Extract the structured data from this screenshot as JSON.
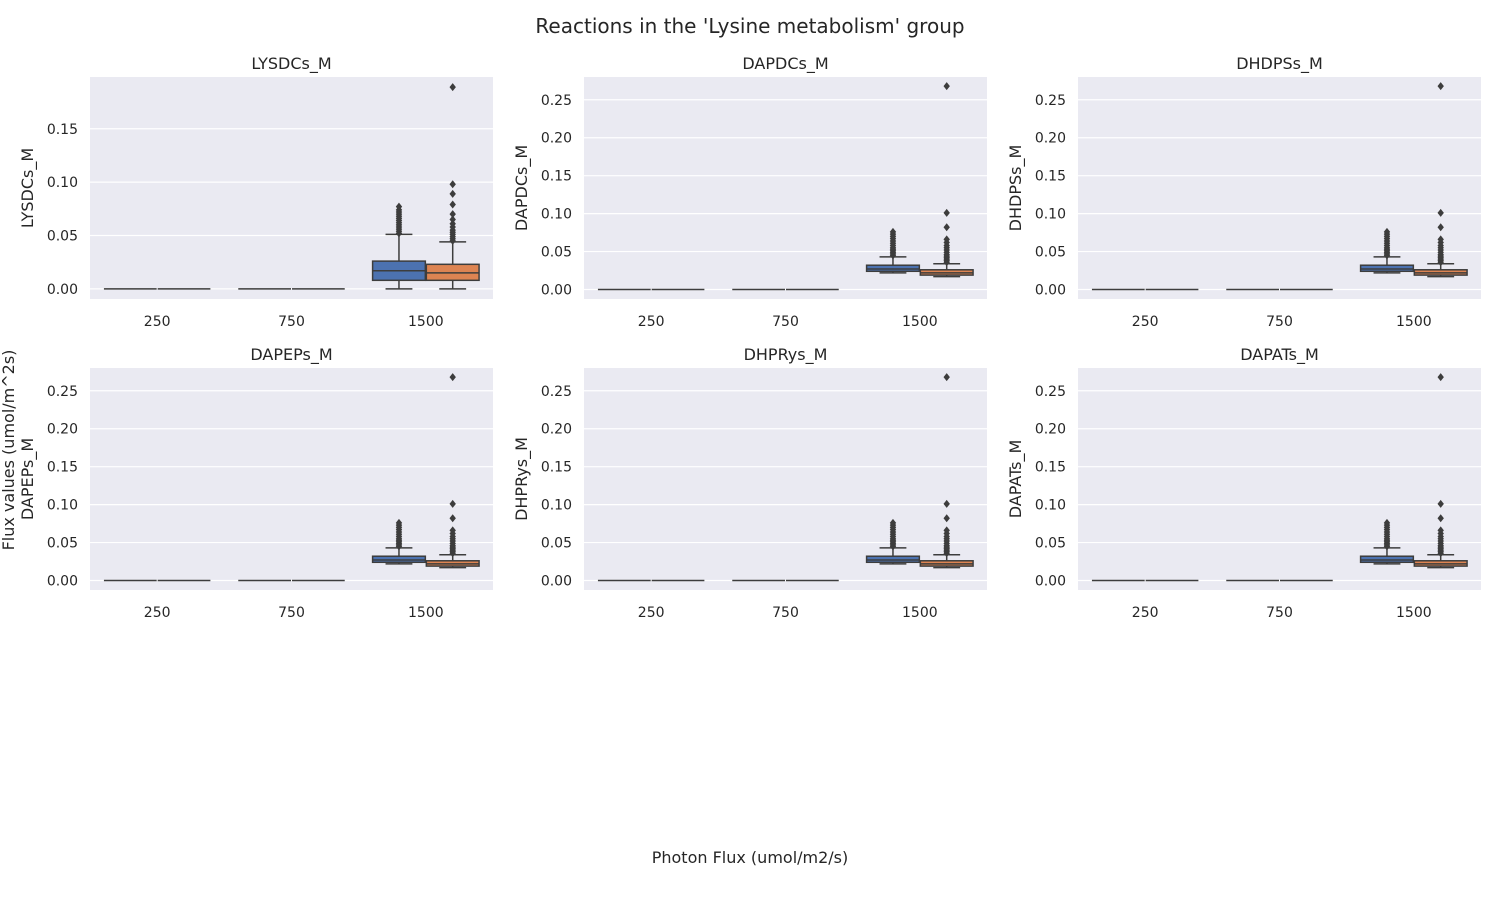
{
  "figure": {
    "title": "Reactions in the 'Lysine metabolism' group",
    "xlabel": "Photon Flux (umol/m2/s)",
    "ylabel": "Flux values (umol/m^2s)"
  },
  "colors": {
    "panel_bg": "#eaeaf2",
    "grid": "#ffffff",
    "hue_1": "#4c72b0",
    "hue_2": "#dd8452",
    "line": "#3d3d3d"
  },
  "chart_data": [
    {
      "type": "box",
      "title": "LYSDCs_M",
      "ylabel": "LYSDCs_M",
      "categories": [
        "250",
        "750",
        "1500"
      ],
      "yticks": [
        "0.00",
        "0.05",
        "0.10",
        "0.15"
      ],
      "ylim": [
        -0.0095,
        0.1985
      ],
      "boxes": [
        {
          "category": "250",
          "hue": 0,
          "q1": 0,
          "median": 0,
          "q3": 0,
          "whisker_low": 0,
          "whisker_high": 0,
          "fliers": []
        },
        {
          "category": "250",
          "hue": 1,
          "q1": 0,
          "median": 0,
          "q3": 0,
          "whisker_low": 0,
          "whisker_high": 0,
          "fliers": []
        },
        {
          "category": "750",
          "hue": 0,
          "q1": 0,
          "median": 0,
          "q3": 0,
          "whisker_low": 0,
          "whisker_high": 0,
          "fliers": []
        },
        {
          "category": "750",
          "hue": 1,
          "q1": 0,
          "median": 0,
          "q3": 0,
          "whisker_low": 0,
          "whisker_high": 0,
          "fliers": []
        },
        {
          "category": "1500",
          "hue": 0,
          "q1": 0.008,
          "median": 0.017,
          "q3": 0.026,
          "whisker_low": 0.0,
          "whisker_high": 0.051,
          "fliers": [
            0.052,
            0.054,
            0.056,
            0.058,
            0.06,
            0.062,
            0.064,
            0.066,
            0.068,
            0.07,
            0.072,
            0.074,
            0.077
          ]
        },
        {
          "category": "1500",
          "hue": 1,
          "q1": 0.008,
          "median": 0.015,
          "q3": 0.023,
          "whisker_low": 0.0,
          "whisker_high": 0.044,
          "fliers": [
            0.045,
            0.047,
            0.049,
            0.051,
            0.053,
            0.055,
            0.058,
            0.061,
            0.065,
            0.07,
            0.079,
            0.089,
            0.098,
            0.189
          ]
        }
      ]
    },
    {
      "type": "box",
      "title": "DAPDCs_M",
      "ylabel": "DAPDCs_M",
      "categories": [
        "250",
        "750",
        "1500"
      ],
      "yticks": [
        "0.00",
        "0.05",
        "0.10",
        "0.15",
        "0.20",
        "0.25"
      ],
      "ylim": [
        -0.0125,
        0.28
      ],
      "boxes": [
        {
          "category": "250",
          "hue": 0,
          "q1": 0,
          "median": 0,
          "q3": 0,
          "whisker_low": 0,
          "whisker_high": 0,
          "fliers": []
        },
        {
          "category": "250",
          "hue": 1,
          "q1": 0,
          "median": 0,
          "q3": 0,
          "whisker_low": 0,
          "whisker_high": 0,
          "fliers": []
        },
        {
          "category": "750",
          "hue": 0,
          "q1": 0,
          "median": 0,
          "q3": 0,
          "whisker_low": 0,
          "whisker_high": 0,
          "fliers": []
        },
        {
          "category": "750",
          "hue": 1,
          "q1": 0,
          "median": 0,
          "q3": 0,
          "whisker_low": 0,
          "whisker_high": 0,
          "fliers": []
        },
        {
          "category": "1500",
          "hue": 0,
          "q1": 0.024,
          "median": 0.027,
          "q3": 0.032,
          "whisker_low": 0.022,
          "whisker_high": 0.043,
          "fliers": [
            0.045,
            0.047,
            0.049,
            0.051,
            0.053,
            0.055,
            0.058,
            0.061,
            0.064,
            0.067,
            0.07,
            0.073,
            0.076
          ]
        },
        {
          "category": "1500",
          "hue": 1,
          "q1": 0.019,
          "median": 0.022,
          "q3": 0.026,
          "whisker_low": 0.017,
          "whisker_high": 0.034,
          "fliers": [
            0.036,
            0.038,
            0.04,
            0.042,
            0.044,
            0.046,
            0.049,
            0.052,
            0.055,
            0.058,
            0.062,
            0.066,
            0.082,
            0.101,
            0.268
          ]
        }
      ]
    },
    {
      "type": "box",
      "title": "DHDPSs_M",
      "ylabel": "DHDPSs_M",
      "categories": [
        "250",
        "750",
        "1500"
      ],
      "yticks": [
        "0.00",
        "0.05",
        "0.10",
        "0.15",
        "0.20",
        "0.25"
      ],
      "ylim": [
        -0.0125,
        0.28
      ],
      "boxes": [
        {
          "category": "250",
          "hue": 0,
          "q1": 0,
          "median": 0,
          "q3": 0,
          "whisker_low": 0,
          "whisker_high": 0,
          "fliers": []
        },
        {
          "category": "250",
          "hue": 1,
          "q1": 0,
          "median": 0,
          "q3": 0,
          "whisker_low": 0,
          "whisker_high": 0,
          "fliers": []
        },
        {
          "category": "750",
          "hue": 0,
          "q1": 0,
          "median": 0,
          "q3": 0,
          "whisker_low": 0,
          "whisker_high": 0,
          "fliers": []
        },
        {
          "category": "750",
          "hue": 1,
          "q1": 0,
          "median": 0,
          "q3": 0,
          "whisker_low": 0,
          "whisker_high": 0,
          "fliers": []
        },
        {
          "category": "1500",
          "hue": 0,
          "q1": 0.024,
          "median": 0.027,
          "q3": 0.032,
          "whisker_low": 0.022,
          "whisker_high": 0.043,
          "fliers": [
            0.045,
            0.047,
            0.049,
            0.051,
            0.053,
            0.055,
            0.058,
            0.061,
            0.064,
            0.067,
            0.07,
            0.073,
            0.076
          ]
        },
        {
          "category": "1500",
          "hue": 1,
          "q1": 0.019,
          "median": 0.022,
          "q3": 0.026,
          "whisker_low": 0.017,
          "whisker_high": 0.034,
          "fliers": [
            0.036,
            0.038,
            0.04,
            0.042,
            0.044,
            0.046,
            0.049,
            0.052,
            0.055,
            0.058,
            0.062,
            0.066,
            0.082,
            0.101,
            0.268
          ]
        }
      ]
    },
    {
      "type": "box",
      "title": "DAPEPs_M",
      "ylabel": "DAPEPs_M",
      "categories": [
        "250",
        "750",
        "1500"
      ],
      "yticks": [
        "0.00",
        "0.05",
        "0.10",
        "0.15",
        "0.20",
        "0.25"
      ],
      "ylim": [
        -0.0125,
        0.28
      ],
      "boxes": [
        {
          "category": "250",
          "hue": 0,
          "q1": 0,
          "median": 0,
          "q3": 0,
          "whisker_low": 0,
          "whisker_high": 0,
          "fliers": []
        },
        {
          "category": "250",
          "hue": 1,
          "q1": 0,
          "median": 0,
          "q3": 0,
          "whisker_low": 0,
          "whisker_high": 0,
          "fliers": []
        },
        {
          "category": "750",
          "hue": 0,
          "q1": 0,
          "median": 0,
          "q3": 0,
          "whisker_low": 0,
          "whisker_high": 0,
          "fliers": []
        },
        {
          "category": "750",
          "hue": 1,
          "q1": 0,
          "median": 0,
          "q3": 0,
          "whisker_low": 0,
          "whisker_high": 0,
          "fliers": []
        },
        {
          "category": "1500",
          "hue": 0,
          "q1": 0.024,
          "median": 0.027,
          "q3": 0.032,
          "whisker_low": 0.022,
          "whisker_high": 0.043,
          "fliers": [
            0.045,
            0.047,
            0.049,
            0.051,
            0.053,
            0.055,
            0.058,
            0.061,
            0.064,
            0.067,
            0.07,
            0.073,
            0.076
          ]
        },
        {
          "category": "1500",
          "hue": 1,
          "q1": 0.019,
          "median": 0.022,
          "q3": 0.026,
          "whisker_low": 0.017,
          "whisker_high": 0.034,
          "fliers": [
            0.036,
            0.038,
            0.04,
            0.042,
            0.044,
            0.046,
            0.049,
            0.052,
            0.055,
            0.058,
            0.062,
            0.066,
            0.082,
            0.101,
            0.268
          ]
        }
      ]
    },
    {
      "type": "box",
      "title": "DHPRys_M",
      "ylabel": "DHPRys_M",
      "categories": [
        "250",
        "750",
        "1500"
      ],
      "yticks": [
        "0.00",
        "0.05",
        "0.10",
        "0.15",
        "0.20",
        "0.25"
      ],
      "ylim": [
        -0.0125,
        0.28
      ],
      "boxes": [
        {
          "category": "250",
          "hue": 0,
          "q1": 0,
          "median": 0,
          "q3": 0,
          "whisker_low": 0,
          "whisker_high": 0,
          "fliers": []
        },
        {
          "category": "250",
          "hue": 1,
          "q1": 0,
          "median": 0,
          "q3": 0,
          "whisker_low": 0,
          "whisker_high": 0,
          "fliers": []
        },
        {
          "category": "750",
          "hue": 0,
          "q1": 0,
          "median": 0,
          "q3": 0,
          "whisker_low": 0,
          "whisker_high": 0,
          "fliers": []
        },
        {
          "category": "750",
          "hue": 1,
          "q1": 0,
          "median": 0,
          "q3": 0,
          "whisker_low": 0,
          "whisker_high": 0,
          "fliers": []
        },
        {
          "category": "1500",
          "hue": 0,
          "q1": 0.024,
          "median": 0.027,
          "q3": 0.032,
          "whisker_low": 0.022,
          "whisker_high": 0.043,
          "fliers": [
            0.045,
            0.047,
            0.049,
            0.051,
            0.053,
            0.055,
            0.058,
            0.061,
            0.064,
            0.067,
            0.07,
            0.073,
            0.076
          ]
        },
        {
          "category": "1500",
          "hue": 1,
          "q1": 0.019,
          "median": 0.022,
          "q3": 0.026,
          "whisker_low": 0.017,
          "whisker_high": 0.034,
          "fliers": [
            0.036,
            0.038,
            0.04,
            0.042,
            0.044,
            0.046,
            0.049,
            0.052,
            0.055,
            0.058,
            0.062,
            0.066,
            0.082,
            0.101,
            0.268
          ]
        }
      ]
    },
    {
      "type": "box",
      "title": "DAPATs_M",
      "ylabel": "DAPATs_M",
      "categories": [
        "250",
        "750",
        "1500"
      ],
      "yticks": [
        "0.00",
        "0.05",
        "0.10",
        "0.15",
        "0.20",
        "0.25"
      ],
      "ylim": [
        -0.0125,
        0.28
      ],
      "boxes": [
        {
          "category": "250",
          "hue": 0,
          "q1": 0,
          "median": 0,
          "q3": 0,
          "whisker_low": 0,
          "whisker_high": 0,
          "fliers": []
        },
        {
          "category": "250",
          "hue": 1,
          "q1": 0,
          "median": 0,
          "q3": 0,
          "whisker_low": 0,
          "whisker_high": 0,
          "fliers": []
        },
        {
          "category": "750",
          "hue": 0,
          "q1": 0,
          "median": 0,
          "q3": 0,
          "whisker_low": 0,
          "whisker_high": 0,
          "fliers": []
        },
        {
          "category": "750",
          "hue": 1,
          "q1": 0,
          "median": 0,
          "q3": 0,
          "whisker_low": 0,
          "whisker_high": 0,
          "fliers": []
        },
        {
          "category": "1500",
          "hue": 0,
          "q1": 0.024,
          "median": 0.027,
          "q3": 0.032,
          "whisker_low": 0.022,
          "whisker_high": 0.043,
          "fliers": [
            0.045,
            0.047,
            0.049,
            0.051,
            0.053,
            0.055,
            0.058,
            0.061,
            0.064,
            0.067,
            0.07,
            0.073,
            0.076
          ]
        },
        {
          "category": "1500",
          "hue": 1,
          "q1": 0.019,
          "median": 0.022,
          "q3": 0.026,
          "whisker_low": 0.017,
          "whisker_high": 0.034,
          "fliers": [
            0.036,
            0.038,
            0.04,
            0.042,
            0.044,
            0.046,
            0.049,
            0.052,
            0.055,
            0.058,
            0.062,
            0.066,
            0.082,
            0.101,
            0.268
          ]
        }
      ]
    }
  ]
}
